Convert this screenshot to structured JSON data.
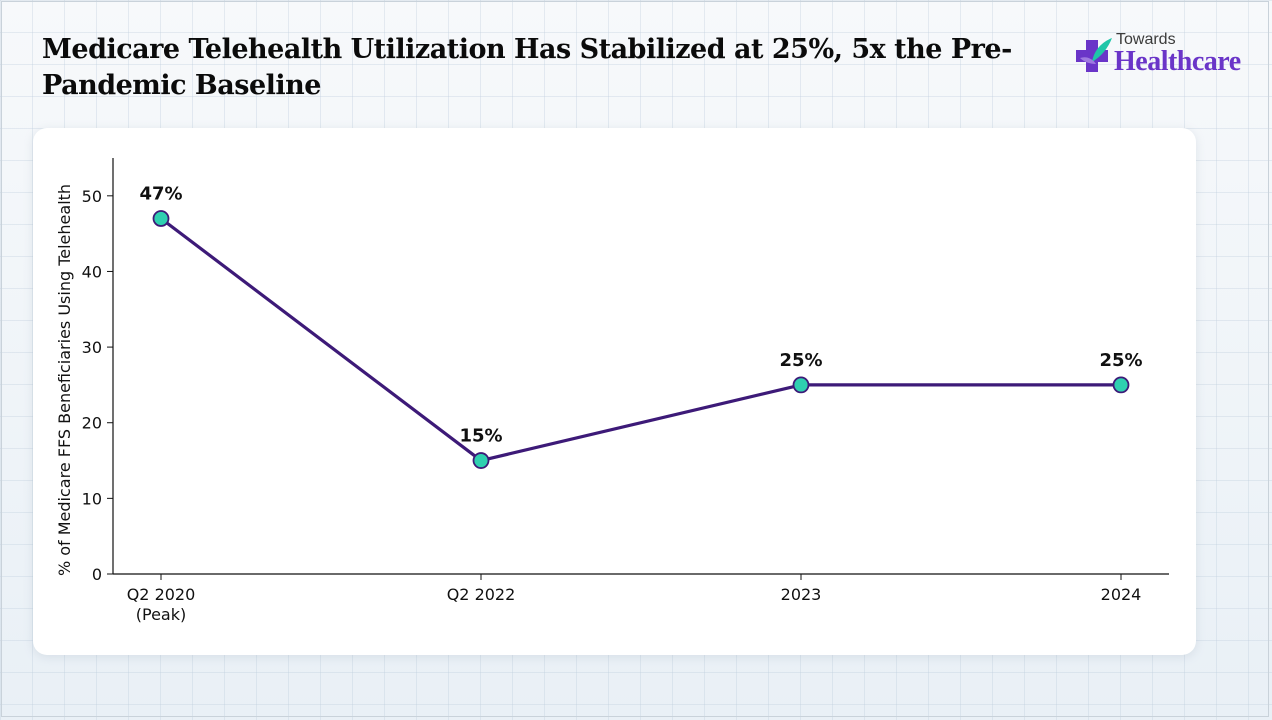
{
  "header": {
    "title": "Medicare Telehealth Utilization Has Stabilized at 25%, 5x the Pre-Pandemic Baseline",
    "logo_top": "Towards",
    "logo_bottom": "Healthcare"
  },
  "colors": {
    "line": "#3d1a78",
    "marker_fill": "#2fd0b0",
    "marker_edge": "#3d1a78",
    "logo_purple": "#6a35c8",
    "logo_teal": "#1fc6a8"
  },
  "chart_data": {
    "type": "line",
    "categories": [
      "Q2 2020\n(Peak)",
      "Q2 2022",
      "2023",
      "2024"
    ],
    "series": [
      {
        "values": [
          47,
          15,
          25,
          25
        ]
      }
    ],
    "data_labels": [
      "47%",
      "15%",
      "25%",
      "25%"
    ],
    "title": "",
    "xlabel": "",
    "ylabel": "% of Medicare FFS Beneficiaries Using Telehealth",
    "ylim": [
      0,
      55
    ],
    "yticks": [
      0,
      10,
      20,
      30,
      40,
      50
    ],
    "grid": false,
    "legend": "none"
  }
}
